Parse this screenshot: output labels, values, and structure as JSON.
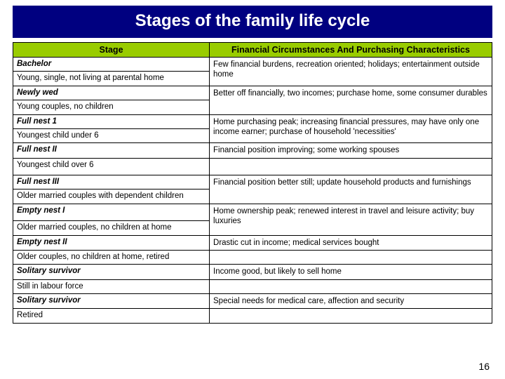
{
  "title": "Stages of the family life cycle",
  "page_number": "16",
  "colors": {
    "title_bg": "#000080",
    "title_text": "#ffffff",
    "header_bg": "#99cc00",
    "border": "#000000",
    "background": "#ffffff"
  },
  "table": {
    "headers": {
      "stage": "Stage",
      "finance": "Financial Circumstances And Purchasing Characteristics"
    },
    "rows": [
      {
        "stage_name": "Bachelor",
        "finance": "Few financial burdens, recreation oriented; holidays; entertainment outside home",
        "rowspan": 2
      },
      {
        "stage_desc": "Young, single, not living at parental home"
      },
      {
        "stage_name": "Newly wed",
        "finance": "Better off financially, two incomes; purchase home, some consumer durables",
        "rowspan": 2
      },
      {
        "stage_desc": "Young couples, no children"
      },
      {
        "stage_name": "Full nest 1",
        "finance": "Home purchasing peak; increasing financial pressures, may have only one income earner; purchase of household 'necessities'",
        "rowspan": 2
      },
      {
        "stage_desc": "Youngest child under 6"
      },
      {
        "stage_name": "Full nest II",
        "finance": "Financial position improving; some working spouses",
        "rowspan": 1
      },
      {
        "stage_desc": "Youngest child over 6",
        "finance_empty": true
      },
      {
        "stage_name": "Full nest III",
        "finance": "Financial position better still; update household products and furnishings",
        "rowspan": 2
      },
      {
        "stage_desc": "Older married couples with dependent children"
      },
      {
        "stage_name": "Empty nest  I",
        "finance": "Home ownership peak; renewed interest in travel and leisure activity; buy luxuries",
        "rowspan": 2
      },
      {
        "stage_desc": "Older married couples, no children at home"
      },
      {
        "stage_name": "Empty nest II",
        "finance": "Drastic cut in income; medical services bought",
        "rowspan": 1
      },
      {
        "stage_desc": "Older couples, no children at home, retired",
        "finance_empty": true
      },
      {
        "stage_name": "Solitary survivor",
        "finance": "Income good, but likely to sell home",
        "rowspan": 1
      },
      {
        "stage_desc": "Still in labour force",
        "finance_empty": true
      },
      {
        "stage_name": "Solitary survivor",
        "finance": "Special needs for medical care, affection and security",
        "rowspan": 1
      },
      {
        "stage_desc": "Retired",
        "finance_empty": true
      }
    ]
  }
}
